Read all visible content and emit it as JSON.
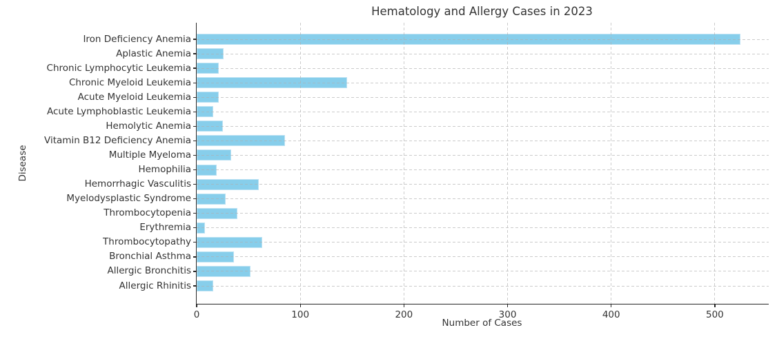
{
  "figure": {
    "background_color": "#ffffff",
    "axis_color": "#262626",
    "text_color": "#333333"
  },
  "chart_data": {
    "type": "bar",
    "orientation": "horizontal",
    "title": "Hematology and Allergy Cases in 2023",
    "xlabel": "Number of Cases",
    "ylabel": "Disease",
    "categories": [
      "Iron Deficiency Anemia",
      "Aplastic Anemia",
      "Chronic Lymphocytic Leukemia",
      "Chronic Myeloid Leukemia",
      "Acute Myeloid Leukemia",
      "Acute Lymphoblastic Leukemia",
      "Hemolytic Anemia",
      "Vitamin B12 Deficiency Anemia",
      "Multiple Myeloma",
      "Hemophilia",
      "Hemorrhagic Vasculitis",
      "Myelodysplastic Syndrome",
      "Thrombocytopenia",
      "Erythremia",
      "Thrombocytopathy",
      "Bronchial Asthma",
      "Allergic Bronchitis",
      "Allergic Rhinitis"
    ],
    "values": [
      525,
      26,
      21,
      145,
      21,
      16,
      25,
      85,
      33,
      19,
      60,
      28,
      39,
      8,
      63,
      36,
      52,
      16
    ],
    "xticks": [
      0,
      100,
      200,
      300,
      400,
      500
    ],
    "xlim": [
      0,
      552
    ],
    "bar_color": "#87CEEB",
    "bar_edge_color": "#bce2f3",
    "grid": {
      "visible": true,
      "style": "dashed",
      "color": "#afafaf",
      "axis": "both"
    },
    "legend": {
      "visible": false
    }
  }
}
